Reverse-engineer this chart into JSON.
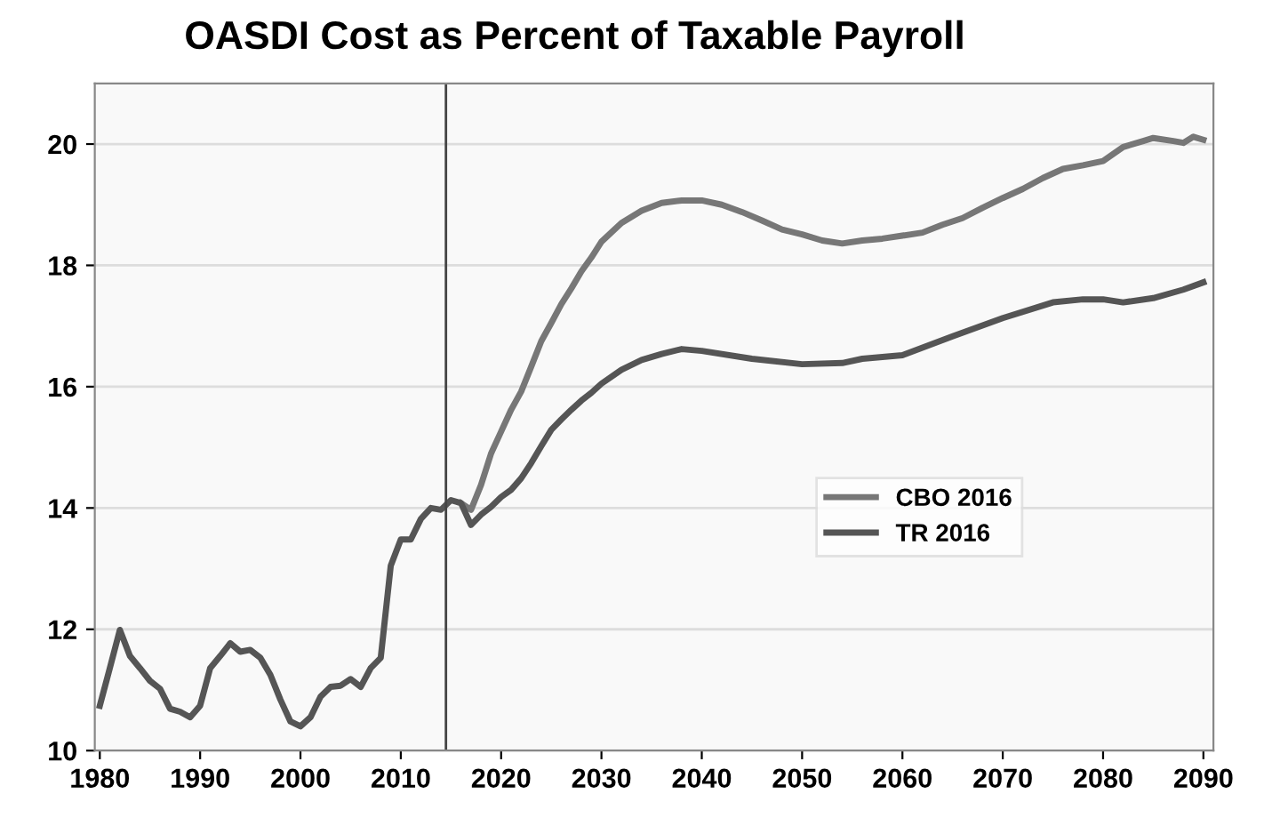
{
  "chart_data": {
    "type": "line",
    "title": "OASDI Cost as Percent of Taxable Payroll",
    "series": [
      {
        "name": "CBO 2016",
        "color": "#777777",
        "x": [
          2016,
          2017,
          2018,
          2019,
          2020,
          2021,
          2022,
          2023,
          2024,
          2025,
          2026,
          2027,
          2028,
          2029,
          2030,
          2032,
          2034,
          2036,
          2038,
          2040,
          2042,
          2044,
          2046,
          2048,
          2050,
          2052,
          2054,
          2056,
          2058,
          2060,
          2062,
          2064,
          2066,
          2068,
          2070,
          2072,
          2074,
          2076,
          2078,
          2080,
          2082,
          2084,
          2085,
          2087,
          2088,
          2089,
          2090
        ],
        "values": [
          14.08,
          13.97,
          14.38,
          14.9,
          15.26,
          15.62,
          15.92,
          16.33,
          16.75,
          17.05,
          17.36,
          17.62,
          17.9,
          18.13,
          18.39,
          18.7,
          18.9,
          19.03,
          19.07,
          19.07,
          19.0,
          18.88,
          18.74,
          18.59,
          18.51,
          18.41,
          18.36,
          18.41,
          18.44,
          18.49,
          18.54,
          18.67,
          18.78,
          18.95,
          19.11,
          19.26,
          19.44,
          19.59,
          19.65,
          19.72,
          19.95,
          20.05,
          20.1,
          20.05,
          20.02,
          20.12,
          20.07
        ]
      },
      {
        "name": "TR 2016",
        "color": "#555555",
        "x": [
          1980,
          1981,
          1982,
          1983,
          1984,
          1985,
          1986,
          1987,
          1988,
          1989,
          1990,
          1991,
          1992,
          1993,
          1994,
          1995,
          1996,
          1997,
          1998,
          1999,
          2000,
          2001,
          2002,
          2003,
          2004,
          2005,
          2006,
          2007,
          2008,
          2009,
          2010,
          2011,
          2012,
          2013,
          2014,
          2015,
          2016,
          2017,
          2018,
          2019,
          2020,
          2021,
          2022,
          2023,
          2024,
          2025,
          2026,
          2027,
          2028,
          2029,
          2030,
          2032,
          2034,
          2036,
          2038,
          2040,
          2045,
          2050,
          2054,
          2056,
          2060,
          2065,
          2070,
          2075,
          2078,
          2080,
          2082,
          2085,
          2088,
          2090
        ],
        "values": [
          10.74,
          11.36,
          11.99,
          11.56,
          11.36,
          11.15,
          11.02,
          10.69,
          10.64,
          10.55,
          10.74,
          11.36,
          11.56,
          11.77,
          11.63,
          11.66,
          11.53,
          11.25,
          10.84,
          10.48,
          10.4,
          10.55,
          10.89,
          11.05,
          11.07,
          11.18,
          11.05,
          11.36,
          11.53,
          13.05,
          13.48,
          13.48,
          13.82,
          14.0,
          13.97,
          14.13,
          14.08,
          13.72,
          13.89,
          14.02,
          14.18,
          14.3,
          14.49,
          14.74,
          15.02,
          15.29,
          15.46,
          15.62,
          15.77,
          15.9,
          16.05,
          16.28,
          16.44,
          16.54,
          16.62,
          16.59,
          16.46,
          16.37,
          16.39,
          16.46,
          16.52,
          16.83,
          17.13,
          17.39,
          17.44,
          17.44,
          17.39,
          17.46,
          17.6,
          17.72
        ]
      }
    ],
    "xlim": [
      1979.5,
      2091
    ],
    "xticks": [
      1980,
      1990,
      2000,
      2010,
      2020,
      2030,
      2040,
      2050,
      2060,
      2070,
      2080,
      2090
    ],
    "ylim": [
      10,
      21
    ],
    "yticks": [
      10,
      12,
      14,
      16,
      18,
      20
    ],
    "ref_lines": [
      {
        "axis": "x",
        "value": 2014.5,
        "color": "#444444"
      }
    ],
    "grid": "y",
    "legend": "center right"
  }
}
